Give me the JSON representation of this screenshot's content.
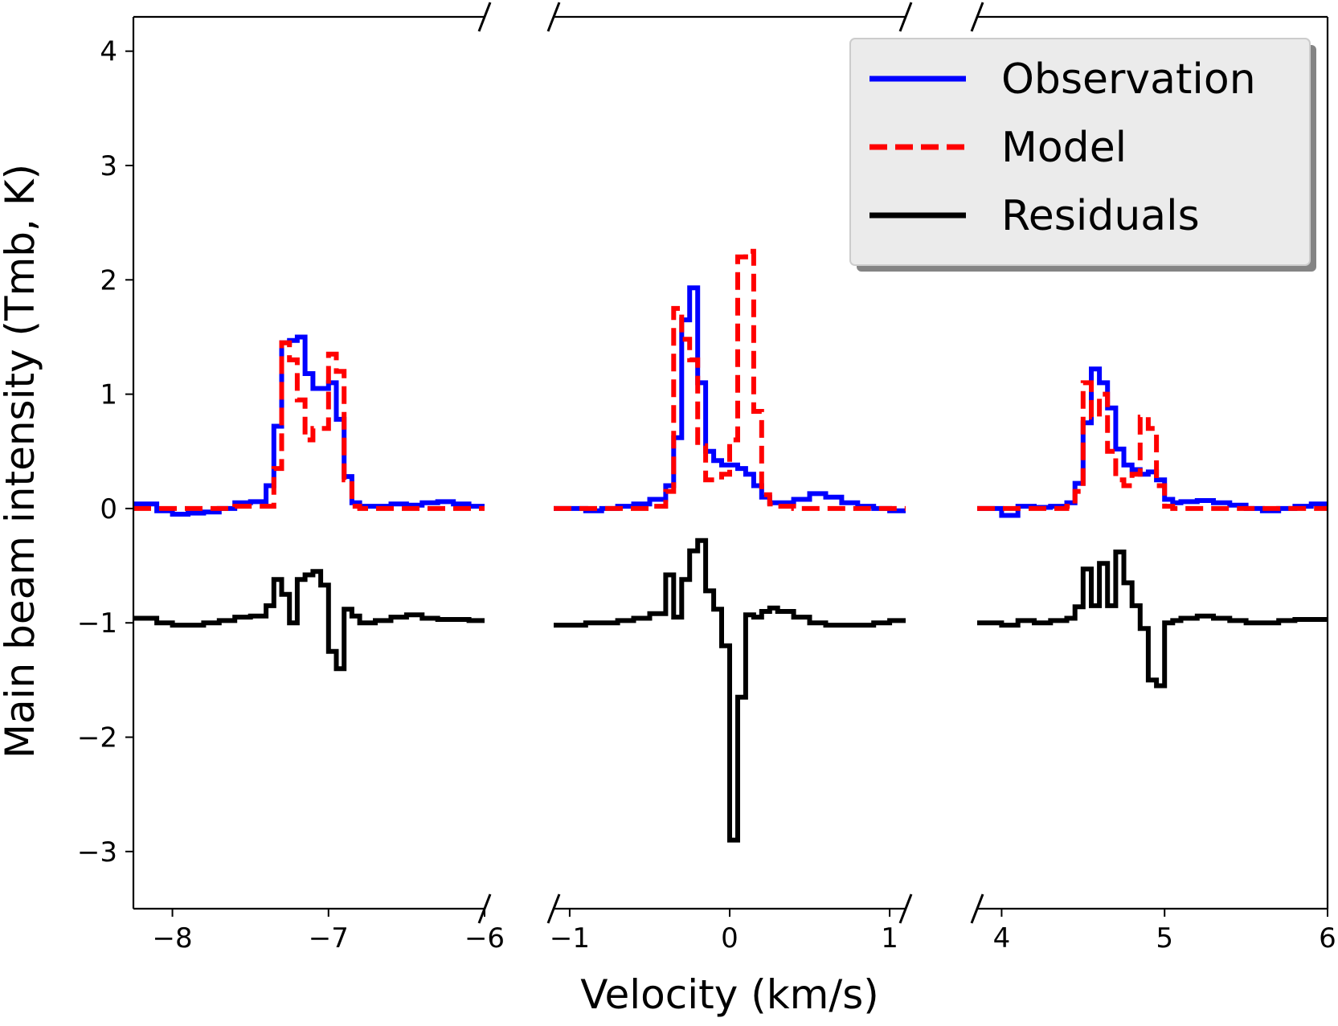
{
  "chart_data": {
    "type": "line",
    "xlabel": "Velocity (km/s)",
    "ylabel": "Main beam intensity (Tmb, K)",
    "ylim": [
      -3.5,
      4.3
    ],
    "yticks": [
      -3,
      -2,
      -1,
      0,
      1,
      2,
      3,
      4
    ],
    "ytick_labels": [
      "−3",
      "−2",
      "−1",
      "0",
      "1",
      "2",
      "3",
      "4"
    ],
    "grid": false,
    "legend_placement": "top-right",
    "legend": [
      {
        "label": "Observation",
        "color": "#0000ff",
        "style": "solid"
      },
      {
        "label": "Model",
        "color": "#ff0000",
        "style": "dashed"
      },
      {
        "label": "Residuals",
        "color": "#000000",
        "style": "solid"
      }
    ],
    "panels": [
      {
        "xlim": [
          -8.25,
          -6.0
        ],
        "xticks": [
          -8,
          -7,
          -6
        ],
        "xtick_labels": [
          "−8",
          "−7",
          "−6"
        ],
        "x": [
          -8.25,
          -8.1,
          -8.0,
          -7.9,
          -7.8,
          -7.7,
          -7.6,
          -7.5,
          -7.4,
          -7.35,
          -7.3,
          -7.25,
          -7.2,
          -7.15,
          -7.1,
          -7.05,
          -7.0,
          -6.95,
          -6.9,
          -6.85,
          -6.8,
          -6.7,
          -6.6,
          -6.5,
          -6.4,
          -6.3,
          -6.2,
          -6.1,
          -6.0
        ],
        "series": [
          {
            "name": "Observation",
            "color": "#0000ff",
            "style": "solid",
            "values": [
              0.04,
              -0.02,
              -0.05,
              -0.04,
              -0.03,
              0.0,
              0.05,
              0.06,
              0.2,
              0.72,
              1.45,
              1.47,
              1.5,
              1.18,
              1.05,
              1.05,
              1.1,
              0.78,
              0.28,
              0.05,
              0.02,
              0.02,
              0.04,
              0.03,
              0.05,
              0.06,
              0.04,
              0.02,
              0.02
            ]
          },
          {
            "name": "Model",
            "color": "#ff0000",
            "style": "dashed",
            "values": [
              0.0,
              0.0,
              0.0,
              0.0,
              0.0,
              0.0,
              0.02,
              0.02,
              0.02,
              0.35,
              1.45,
              1.3,
              0.95,
              0.6,
              0.7,
              0.7,
              1.35,
              1.2,
              0.25,
              0.02,
              0.0,
              0.0,
              0.0,
              0.0,
              0.0,
              0.0,
              0.0,
              0.0,
              0.0
            ]
          },
          {
            "name": "Residuals",
            "color": "#000000",
            "style": "solid",
            "values": [
              -0.96,
              -1.0,
              -1.02,
              -1.02,
              -1.0,
              -0.98,
              -0.95,
              -0.94,
              -0.85,
              -0.62,
              -0.75,
              -1.0,
              -0.62,
              -0.58,
              -0.55,
              -0.67,
              -1.25,
              -1.4,
              -0.88,
              -0.94,
              -1.0,
              -0.98,
              -0.95,
              -0.93,
              -0.96,
              -0.97,
              -0.97,
              -0.98,
              -0.98
            ]
          }
        ]
      },
      {
        "xlim": [
          -1.1,
          1.1
        ],
        "xticks": [
          -1,
          0,
          1
        ],
        "xtick_labels": [
          "−1",
          "0",
          "1"
        ],
        "x": [
          -1.1,
          -0.9,
          -0.8,
          -0.7,
          -0.6,
          -0.5,
          -0.4,
          -0.35,
          -0.3,
          -0.25,
          -0.2,
          -0.15,
          -0.1,
          -0.05,
          0.0,
          0.05,
          0.1,
          0.15,
          0.2,
          0.25,
          0.3,
          0.4,
          0.5,
          0.6,
          0.7,
          0.8,
          0.9,
          1.0,
          1.1
        ],
        "series": [
          {
            "name": "Observation",
            "color": "#0000ff",
            "style": "solid",
            "values": [
              0.0,
              -0.02,
              0.0,
              0.02,
              0.04,
              0.08,
              0.2,
              0.62,
              1.65,
              1.93,
              1.1,
              0.5,
              0.42,
              0.38,
              0.38,
              0.35,
              0.3,
              0.2,
              0.1,
              0.05,
              0.05,
              0.08,
              0.13,
              0.1,
              0.05,
              0.02,
              0.0,
              -0.02,
              0.0
            ]
          },
          {
            "name": "Model",
            "color": "#ff0000",
            "style": "dashed",
            "values": [
              0.0,
              0.0,
              0.0,
              0.0,
              0.0,
              0.02,
              0.15,
              1.75,
              1.48,
              1.3,
              0.55,
              0.25,
              0.25,
              0.3,
              0.6,
              2.2,
              2.25,
              0.85,
              0.12,
              0.04,
              0.02,
              0.0,
              0.0,
              0.0,
              0.0,
              0.0,
              0.0,
              0.0,
              0.0
            ]
          },
          {
            "name": "Residuals",
            "color": "#000000",
            "style": "solid",
            "values": [
              -1.02,
              -1.0,
              -1.0,
              -0.98,
              -0.96,
              -0.92,
              -0.58,
              -0.95,
              -0.62,
              -0.37,
              -0.28,
              -0.72,
              -0.88,
              -1.2,
              -2.9,
              -1.65,
              -0.93,
              -0.95,
              -0.9,
              -0.87,
              -0.9,
              -0.95,
              -1.0,
              -1.02,
              -1.02,
              -1.02,
              -1.0,
              -0.98,
              -0.98
            ]
          }
        ]
      },
      {
        "xlim": [
          3.85,
          6.0
        ],
        "xticks": [
          4,
          5,
          6
        ],
        "xtick_labels": [
          "4",
          "5",
          "6"
        ],
        "x": [
          3.85,
          4.0,
          4.1,
          4.2,
          4.3,
          4.4,
          4.45,
          4.5,
          4.55,
          4.6,
          4.65,
          4.7,
          4.75,
          4.8,
          4.85,
          4.9,
          4.95,
          5.0,
          5.05,
          5.1,
          5.2,
          5.3,
          5.4,
          5.5,
          5.6,
          5.7,
          5.8,
          5.9,
          6.0
        ],
        "series": [
          {
            "name": "Observation",
            "color": "#0000ff",
            "style": "solid",
            "values": [
              0.0,
              -0.06,
              0.02,
              0.01,
              0.02,
              0.05,
              0.22,
              0.75,
              1.22,
              1.1,
              0.88,
              0.52,
              0.38,
              0.34,
              0.3,
              0.32,
              0.25,
              0.08,
              0.05,
              0.06,
              0.07,
              0.05,
              0.03,
              0.0,
              -0.02,
              0.0,
              0.02,
              0.04,
              0.04
            ]
          },
          {
            "name": "Model",
            "color": "#ff0000",
            "style": "dashed",
            "values": [
              0.0,
              0.0,
              0.0,
              0.0,
              0.0,
              0.02,
              0.15,
              1.1,
              0.8,
              1.0,
              0.5,
              0.25,
              0.2,
              0.3,
              0.8,
              0.7,
              0.2,
              0.02,
              0.0,
              0.0,
              0.0,
              0.0,
              0.0,
              0.0,
              0.0,
              0.0,
              0.0,
              0.0,
              0.0
            ]
          },
          {
            "name": "Residuals",
            "color": "#000000",
            "style": "solid",
            "values": [
              -1.0,
              -1.02,
              -0.98,
              -1.0,
              -0.98,
              -0.96,
              -0.86,
              -0.53,
              -0.85,
              -0.48,
              -0.85,
              -0.38,
              -0.65,
              -0.85,
              -1.05,
              -1.5,
              -1.55,
              -1.0,
              -0.98,
              -0.96,
              -0.94,
              -0.96,
              -0.98,
              -1.0,
              -1.0,
              -0.98,
              -0.97,
              -0.97,
              -0.96
            ]
          }
        ]
      }
    ]
  }
}
